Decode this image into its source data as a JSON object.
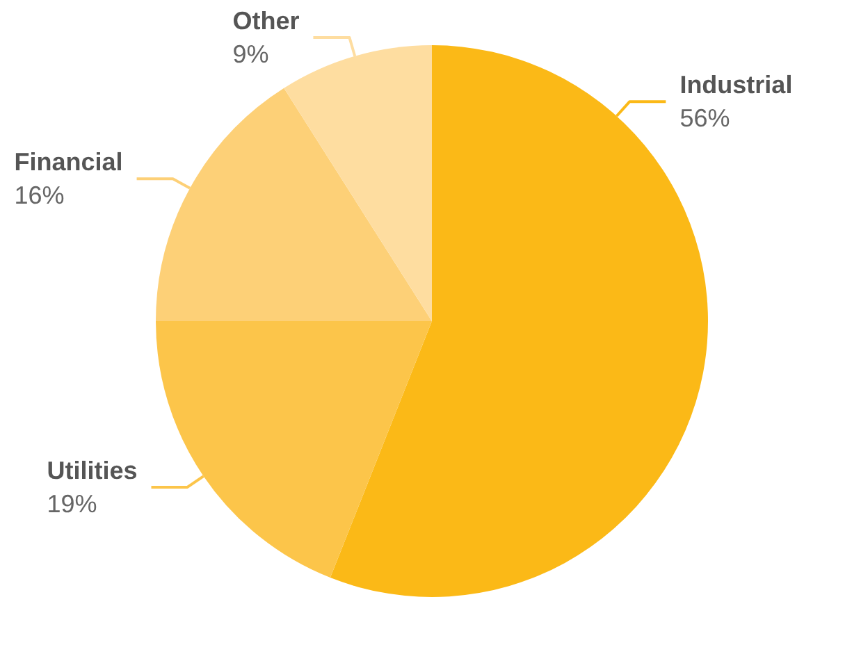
{
  "chart_data": {
    "type": "pie",
    "categories": [
      "Industrial",
      "Utilities",
      "Financial",
      "Other"
    ],
    "values": [
      56,
      19,
      16,
      9
    ],
    "colors": [
      "#fbb917",
      "#fcc54a",
      "#fdd077",
      "#fedda0"
    ],
    "value_labels": [
      "56%",
      "19%",
      "16%",
      "9%"
    ],
    "legend": false
  }
}
